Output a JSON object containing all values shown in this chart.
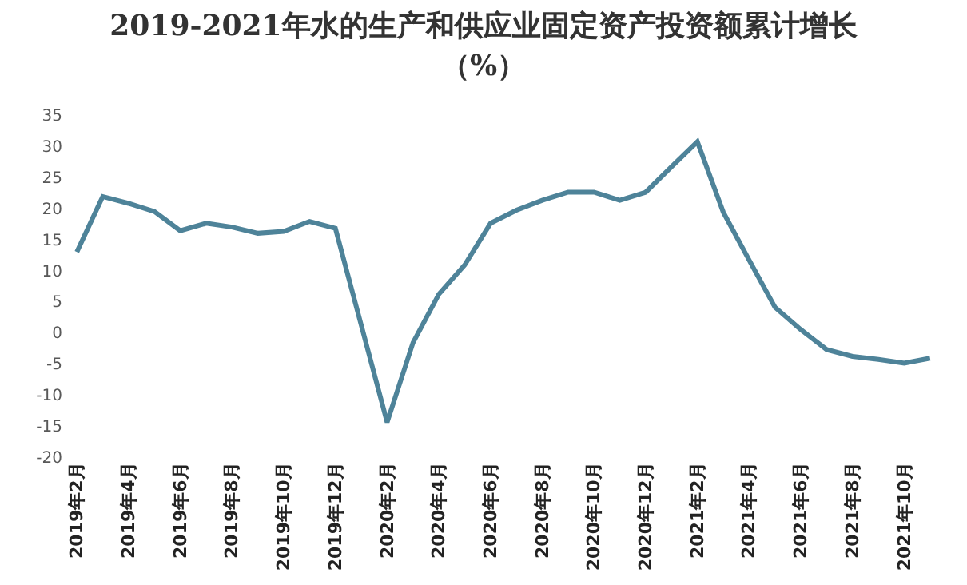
{
  "chart_data": {
    "type": "line",
    "title": "2019-2021年水的生产和供应业固定资产投资额累计增长（%）",
    "categories": [
      "2019年2月",
      null,
      "2019年4月",
      null,
      "2019年6月",
      null,
      "2019年8月",
      null,
      "2019年10月",
      null,
      "2019年12月",
      null,
      "2020年2月",
      null,
      "2020年4月",
      null,
      "2020年6月",
      null,
      "2020年8月",
      null,
      "2020年10月",
      null,
      "2020年12月",
      null,
      "2021年2月",
      null,
      "2021年4月",
      null,
      "2021年6月",
      null,
      "2021年8月",
      null,
      "2021年10月",
      null
    ],
    "series": [
      {
        "color": "#4e8399",
        "values": [
          13.0,
          21.9,
          20.8,
          19.5,
          16.4,
          17.6,
          17.0,
          16.0,
          16.3,
          17.9,
          16.8,
          1.2,
          -14.4,
          -1.6,
          6.2,
          10.9,
          17.6,
          19.7,
          21.3,
          22.6,
          22.6,
          21.3,
          22.6,
          26.7,
          30.7,
          19.4,
          11.7,
          4.1,
          0.5,
          -2.7,
          -3.8,
          -4.3,
          -4.9,
          -4.1
        ]
      }
    ],
    "ylim": [
      -20,
      35
    ],
    "yticks": [
      -20,
      -15,
      -10,
      -5,
      0,
      5,
      10,
      15,
      20,
      25,
      30,
      35
    ],
    "grid": false,
    "legend": false,
    "marker": "none",
    "line_style": "solid"
  }
}
